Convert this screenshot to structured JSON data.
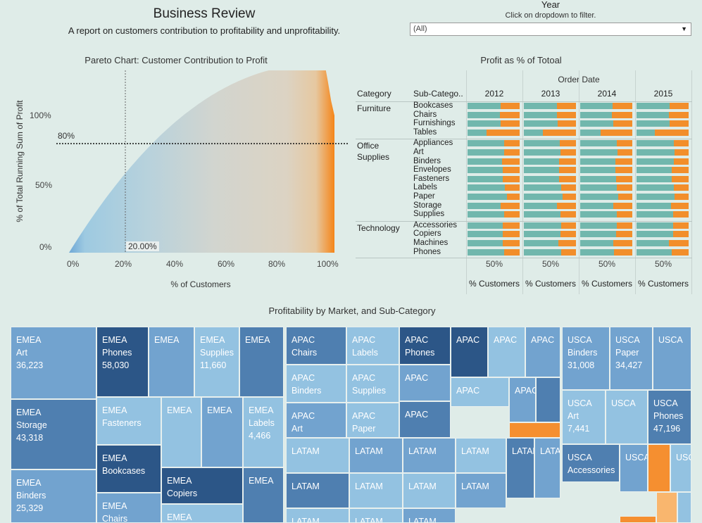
{
  "header": {
    "title": "Business Review",
    "subtitle": "A report on customers contribution to profitability and unprofitability."
  },
  "filter": {
    "label": "Year",
    "hint": "Click on dropdown to filter.",
    "selected": "(All)"
  },
  "pareto": {
    "title": "Pareto Chart: Customer Contribution to Profit",
    "ylabel": "% of Total Running Sum of Profit",
    "xlabel": "% of Customers",
    "yticks": [
      "100%",
      "50%",
      "0%"
    ],
    "xticks": [
      "0%",
      "20%",
      "40%",
      "60%",
      "80%",
      "100%"
    ],
    "ref_y_label": "80%",
    "ref_x_label": "20.00%",
    "colors": {
      "start": "#9ecae1",
      "mid": "#d8d4c6",
      "end": "#f58518"
    }
  },
  "profit_table": {
    "title": "Profit as % of Totoal",
    "order_date_label": "Order Date",
    "col_category": "Category",
    "col_subcategory": "Sub-Catego..",
    "years": [
      "2012",
      "2013",
      "2014",
      "2015"
    ],
    "axis_tick": "50%",
    "axis_label": "% Customers",
    "colors": {
      "profit": "#71b7ad",
      "loss": "#f28e2b"
    },
    "groups": [
      {
        "category": "Furniture",
        "rows": [
          {
            "sub": "Bookcases",
            "values": [
              0.63,
              0.63,
              0.62,
              0.64
            ]
          },
          {
            "sub": "Chairs",
            "values": [
              0.62,
              0.63,
              0.61,
              0.62
            ]
          },
          {
            "sub": "Furnishings",
            "values": [
              0.64,
              0.65,
              0.63,
              0.64
            ]
          },
          {
            "sub": "Tables",
            "values": [
              0.37,
              0.36,
              0.39,
              0.35
            ]
          }
        ]
      },
      {
        "category": "Office Supplies",
        "rows": [
          {
            "sub": "Appliances",
            "values": [
              0.7,
              0.69,
              0.7,
              0.71
            ]
          },
          {
            "sub": "Art",
            "values": [
              0.7,
              0.7,
              0.72,
              0.73
            ]
          },
          {
            "sub": "Binders",
            "values": [
              0.66,
              0.68,
              0.67,
              0.72
            ]
          },
          {
            "sub": "Envelopes",
            "values": [
              0.68,
              0.68,
              0.67,
              0.68
            ]
          },
          {
            "sub": "Fasteners",
            "values": [
              0.68,
              0.68,
              0.69,
              0.67
            ]
          },
          {
            "sub": "Labels",
            "values": [
              0.72,
              0.72,
              0.7,
              0.72
            ]
          },
          {
            "sub": "Paper",
            "values": [
              0.75,
              0.74,
              0.73,
              0.73
            ]
          },
          {
            "sub": "Storage",
            "values": [
              0.63,
              0.64,
              0.64,
              0.66
            ]
          },
          {
            "sub": "Supplies",
            "values": [
              0.7,
              0.7,
              0.7,
              0.7
            ]
          }
        ]
      },
      {
        "category": "Technology",
        "rows": [
          {
            "sub": "Accessories",
            "values": [
              0.67,
              0.72,
              0.7,
              0.7
            ]
          },
          {
            "sub": "Copiers",
            "values": [
              0.67,
              0.7,
              0.69,
              0.7
            ]
          },
          {
            "sub": "Machines",
            "values": [
              0.67,
              0.66,
              0.64,
              0.62
            ]
          },
          {
            "sub": "Phones",
            "values": [
              0.7,
              0.71,
              0.65,
              0.68
            ]
          }
        ]
      }
    ]
  },
  "treemap": {
    "title": "Profitability by Market, and Sub-Category",
    "colors": {
      "dark": "#2c5687",
      "mid": "#4f7fb0",
      "light": "#72a3cf",
      "pale": "#93c2e1",
      "orange": "#f58f30",
      "lightorange": "#f9b66e"
    },
    "cells": [
      {
        "m": "EMEA",
        "s": "Art",
        "v": "36,223",
        "c": "light"
      },
      {
        "m": "EMEA",
        "s": "Phones",
        "v": "58,030",
        "c": "dark"
      },
      {
        "m": "EMEA",
        "s": "",
        "v": "",
        "c": "light"
      },
      {
        "m": "EMEA",
        "s": "Supplies",
        "v": "11,660",
        "c": "pale"
      },
      {
        "m": "EMEA",
        "s": "",
        "v": "",
        "c": "mid"
      },
      {
        "m": "EMEA",
        "s": "Storage",
        "v": "43,318",
        "c": "mid"
      },
      {
        "m": "EMEA",
        "s": "Fasteners",
        "v": "",
        "c": "pale"
      },
      {
        "m": "EMEA",
        "s": "",
        "v": "",
        "c": "pale"
      },
      {
        "m": "EMEA",
        "s": "",
        "v": "",
        "c": "light"
      },
      {
        "m": "EMEA",
        "s": "Labels",
        "v": "4,466",
        "c": "pale"
      },
      {
        "m": "EMEA",
        "s": "Bookcases",
        "v": "",
        "c": "dark"
      },
      {
        "m": "EMEA",
        "s": "Binders",
        "v": "25,329",
        "c": "light"
      },
      {
        "m": "EMEA",
        "s": "Copiers",
        "v": "",
        "c": "dark"
      },
      {
        "m": "EMEA",
        "s": "",
        "v": "",
        "c": "mid"
      },
      {
        "m": "EMEA",
        "s": "Chairs",
        "v": "",
        "c": "light"
      },
      {
        "m": "EMEA",
        "s": "",
        "v": "",
        "c": "pale"
      },
      {
        "m": "APAC",
        "s": "Chairs",
        "v": "",
        "c": "mid"
      },
      {
        "m": "APAC",
        "s": "Labels",
        "v": "",
        "c": "pale"
      },
      {
        "m": "APAC",
        "s": "Phones",
        "v": "",
        "c": "dark"
      },
      {
        "m": "APAC",
        "s": "",
        "v": "",
        "c": "dark"
      },
      {
        "m": "APAC",
        "s": "",
        "v": "",
        "c": "pale"
      },
      {
        "m": "APAC",
        "s": "",
        "v": "",
        "c": "light"
      },
      {
        "m": "APAC",
        "s": "Binders",
        "v": "",
        "c": "pale"
      },
      {
        "m": "APAC",
        "s": "Supplies",
        "v": "",
        "c": "pale"
      },
      {
        "m": "APAC",
        "s": "",
        "v": "",
        "c": "light"
      },
      {
        "m": "APAC",
        "s": "",
        "v": "",
        "c": "pale"
      },
      {
        "m": "APAC",
        "s": "",
        "v": "",
        "c": "light"
      },
      {
        "m": "APAC",
        "s": "Art",
        "v": "",
        "c": "light"
      },
      {
        "m": "APAC",
        "s": "Paper",
        "v": "",
        "c": "pale"
      },
      {
        "m": "APAC",
        "s": "",
        "v": "",
        "c": "mid"
      },
      {
        "m": "LATAM",
        "s": "",
        "v": "",
        "c": "pale"
      },
      {
        "m": "LATAM",
        "s": "",
        "v": "",
        "c": "light"
      },
      {
        "m": "LATAM",
        "s": "",
        "v": "",
        "c": "light"
      },
      {
        "m": "LATAM",
        "s": "",
        "v": "",
        "c": "pale"
      },
      {
        "m": "LATAM",
        "s": "",
        "v": "",
        "c": "mid"
      },
      {
        "m": "LATAM",
        "s": "",
        "v": "",
        "c": "mid"
      },
      {
        "m": "LATAM",
        "s": "",
        "v": "",
        "c": "pale"
      },
      {
        "m": "LATAM",
        "s": "",
        "v": "",
        "c": "pale"
      },
      {
        "m": "LATAM",
        "s": "",
        "v": "",
        "c": "light"
      },
      {
        "m": "LATAM",
        "s": "",
        "v": "",
        "c": "light"
      },
      {
        "m": "LATAM",
        "s": "",
        "v": "",
        "c": "pale"
      },
      {
        "m": "LATAM",
        "s": "",
        "v": "",
        "c": "pale"
      },
      {
        "m": "LATAM",
        "s": "",
        "v": "",
        "c": "light"
      },
      {
        "m": "USCA",
        "s": "Binders",
        "v": "31,008",
        "c": "light"
      },
      {
        "m": "USCA",
        "s": "Paper",
        "v": "34,427",
        "c": "light"
      },
      {
        "m": "USCA",
        "s": "",
        "v": "",
        "c": "light"
      },
      {
        "m": "USCA",
        "s": "Art",
        "v": "7,441",
        "c": "pale"
      },
      {
        "m": "USCA",
        "s": "",
        "v": "",
        "c": "pale"
      },
      {
        "m": "USCA",
        "s": "Phones",
        "v": "47,196",
        "c": "mid"
      },
      {
        "m": "USCA",
        "s": "Accessories",
        "v": "",
        "c": "mid"
      },
      {
        "m": "USCA",
        "s": "",
        "v": "",
        "c": "light"
      },
      {
        "m": "USCA",
        "s": "",
        "v": "",
        "c": "pale"
      }
    ]
  }
}
